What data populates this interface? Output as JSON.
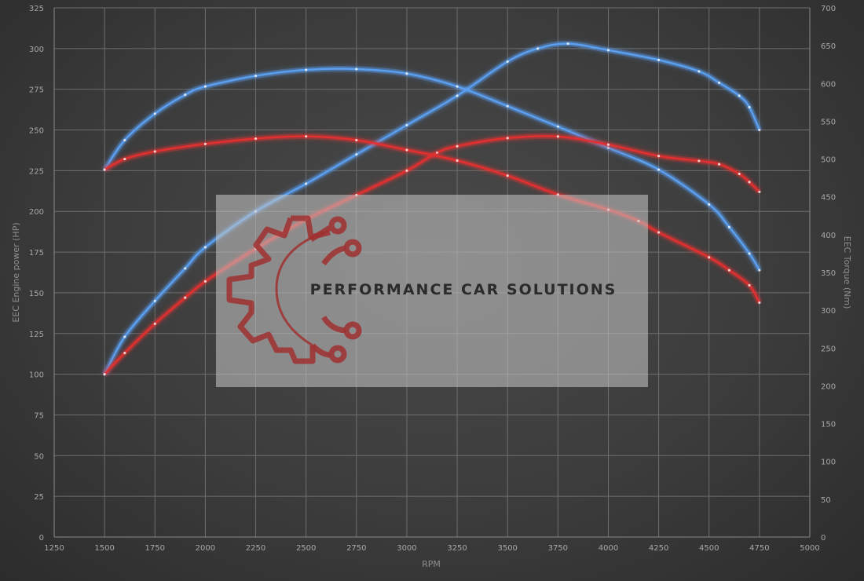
{
  "chart_data": {
    "type": "line",
    "title": "",
    "xlabel": "RPM",
    "ylabel_left": "EEC Engine power (HP)",
    "ylabel_right": "EEC Torque (Nm)",
    "xlim": [
      1250,
      5000
    ],
    "ylim_left": [
      0,
      325
    ],
    "ylim_right": [
      0,
      700
    ],
    "x_ticks": [
      1250,
      1500,
      1750,
      2000,
      2250,
      2500,
      2750,
      3000,
      3250,
      3500,
      3750,
      4000,
      4250,
      4500,
      4750,
      5000
    ],
    "y_ticks_left": [
      0,
      25,
      50,
      75,
      100,
      125,
      150,
      175,
      200,
      225,
      250,
      275,
      300,
      325
    ],
    "y_ticks_right": [
      0,
      50,
      100,
      150,
      200,
      250,
      300,
      350,
      400,
      450,
      500,
      550,
      600,
      650,
      700
    ],
    "grid": true,
    "series": [
      {
        "axis": "left",
        "color": "#5a9ff0",
        "points": [
          [
            1500,
            100
          ],
          [
            1600,
            123
          ],
          [
            1750,
            145
          ],
          [
            1900,
            165
          ],
          [
            2000,
            178
          ],
          [
            2250,
            200
          ],
          [
            2500,
            217
          ],
          [
            2750,
            235
          ],
          [
            3000,
            253
          ],
          [
            3250,
            271
          ],
          [
            3500,
            292
          ],
          [
            3650,
            300
          ],
          [
            3800,
            303
          ],
          [
            4000,
            299
          ],
          [
            4250,
            293
          ],
          [
            4450,
            286
          ],
          [
            4550,
            279
          ],
          [
            4650,
            271
          ],
          [
            4700,
            264
          ],
          [
            4750,
            250
          ]
        ]
      },
      {
        "axis": "right",
        "color": "#5a9ff0",
        "points": [
          [
            1500,
            486
          ],
          [
            1600,
            525
          ],
          [
            1750,
            560
          ],
          [
            1900,
            585
          ],
          [
            2000,
            596
          ],
          [
            2250,
            610
          ],
          [
            2500,
            618
          ],
          [
            2750,
            619
          ],
          [
            3000,
            613
          ],
          [
            3250,
            596
          ],
          [
            3500,
            570
          ],
          [
            3750,
            543
          ],
          [
            4000,
            515
          ],
          [
            4250,
            486
          ],
          [
            4500,
            440
          ],
          [
            4600,
            410
          ],
          [
            4700,
            375
          ],
          [
            4750,
            353
          ]
        ]
      },
      {
        "axis": "left",
        "color": "#e23030",
        "points": [
          [
            1500,
            100
          ],
          [
            1600,
            113
          ],
          [
            1750,
            131
          ],
          [
            1900,
            147
          ],
          [
            2000,
            157
          ],
          [
            2250,
            177
          ],
          [
            2500,
            195
          ],
          [
            2750,
            210
          ],
          [
            3000,
            225
          ],
          [
            3150,
            236
          ],
          [
            3250,
            240
          ],
          [
            3500,
            245
          ],
          [
            3750,
            246
          ],
          [
            4000,
            241
          ],
          [
            4250,
            234
          ],
          [
            4450,
            231
          ],
          [
            4550,
            229
          ],
          [
            4650,
            223
          ],
          [
            4700,
            218
          ],
          [
            4750,
            212
          ]
        ]
      },
      {
        "axis": "right",
        "color": "#e23030",
        "points": [
          [
            1500,
            486
          ],
          [
            1600,
            500
          ],
          [
            1750,
            510
          ],
          [
            2000,
            520
          ],
          [
            2250,
            527
          ],
          [
            2500,
            530
          ],
          [
            2750,
            525
          ],
          [
            3000,
            512
          ],
          [
            3250,
            498
          ],
          [
            3500,
            478
          ],
          [
            3750,
            453
          ],
          [
            4000,
            433
          ],
          [
            4150,
            418
          ],
          [
            4250,
            403
          ],
          [
            4500,
            370
          ],
          [
            4600,
            353
          ],
          [
            4700,
            333
          ],
          [
            4750,
            310
          ]
        ]
      }
    ]
  },
  "watermark": {
    "text": "PERFORMANCE CAR SOLUTIONS",
    "logo": "gear-circuit-logo-icon",
    "logo_color": "#a03030"
  }
}
